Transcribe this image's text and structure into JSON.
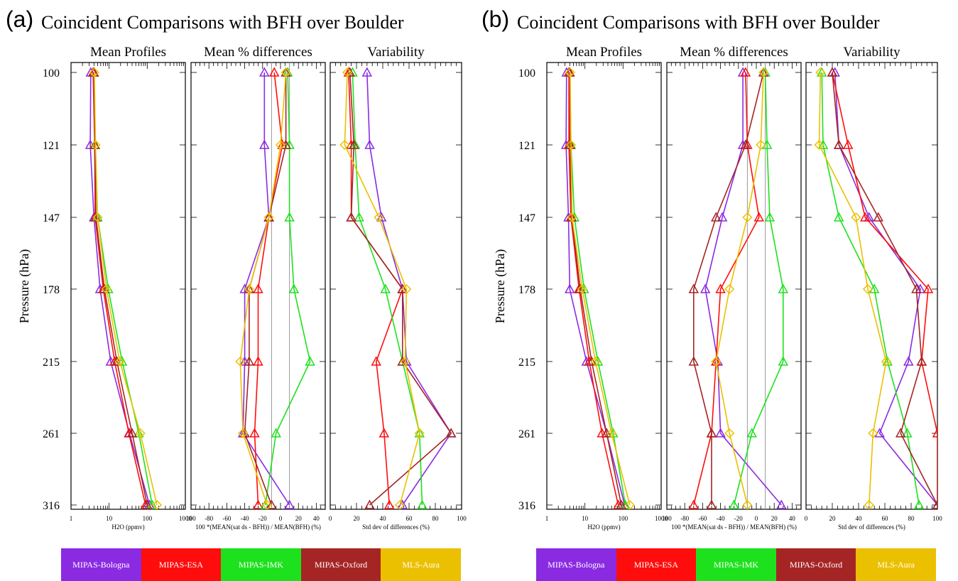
{
  "colors": {
    "MIPAS-Bologna": "#8a2be2",
    "MIPAS-ESA": "#ff0d0d",
    "MIPAS-IMK": "#1ee11e",
    "MIPAS-Oxford": "#a52525",
    "MLS-Aura": "#ebc000"
  },
  "legend": [
    "MIPAS-Bologna",
    "MIPAS-ESA",
    "MIPAS-IMK",
    "MIPAS-Oxford",
    "MLS-Aura"
  ],
  "chart_data": [
    {
      "label": "(a)",
      "title": "Coincident Comparisons with BFH over Boulder",
      "ylabel": "Pressure (hPa)",
      "pressure": [
        100,
        121,
        147,
        178,
        215,
        261,
        316
      ],
      "panels": [
        {
          "type": "line",
          "title": "Mean Profiles",
          "xlabel": "H2O (ppmv)",
          "xscale": "log",
          "xlim": [
            1,
            1000
          ],
          "xticks": [
            "1",
            "10",
            "100",
            "1000"
          ],
          "series": [
            {
              "name": "MIPAS-Bologna",
              "values": [
                3.3,
                3.2,
                4.0,
                5.8,
                11,
                34,
                115
              ]
            },
            {
              "name": "MIPAS-ESA",
              "values": [
                3.8,
                4.2,
                4.3,
                7.0,
                14,
                33,
                90
              ]
            },
            {
              "name": "MIPAS-IMK",
              "values": [
                4.0,
                4.3,
                5.0,
                9.5,
                22,
                60,
                135
              ]
            },
            {
              "name": "MIPAS-Oxford",
              "values": [
                4.0,
                4.2,
                4.5,
                7.5,
                16,
                40,
                100
              ]
            },
            {
              "name": "MLS-Aura",
              "values": [
                4.1,
                4.4,
                5.0,
                8.5,
                19,
                66,
                180
              ]
            }
          ]
        },
        {
          "type": "line",
          "title": "Mean % differences",
          "xlabel": "100 *(MEAN(sat ds - BFH)) / MEAN(BFH) (%)",
          "xlim": [
            -100,
            50
          ],
          "xticks": [
            "100",
            "-80",
            "-60",
            "-40",
            "-20",
            "0",
            "20",
            "40"
          ],
          "vlines": [
            -10,
            10
          ],
          "series": [
            {
              "name": "MIPAS-Bologna",
              "values": [
                -18,
                -18,
                -13,
                -40,
                -40,
                -42,
                10
              ]
            },
            {
              "name": "MIPAS-ESA",
              "values": [
                -7,
                2,
                -13,
                -25,
                -25,
                -29,
                -25
              ]
            },
            {
              "name": "MIPAS-IMK",
              "values": [
                8,
                10,
                10,
                15,
                33,
                -5,
                -17
              ]
            },
            {
              "name": "MIPAS-Oxford",
              "values": [
                6,
                6,
                -13,
                -35,
                -35,
                -40,
                -10
              ]
            },
            {
              "name": "MLS-Aura",
              "values": [
                6,
                0,
                -13,
                -35,
                -45,
                -42,
                -15
              ]
            }
          ]
        },
        {
          "type": "line",
          "title": "Variability",
          "xlabel": "Std dev of differences (%)",
          "xlim": [
            0,
            100
          ],
          "xticks": [
            "0",
            "20",
            "40",
            "60",
            "80",
            "100"
          ],
          "series": [
            {
              "name": "MIPAS-Bologna",
              "values": [
                28,
                30,
                39,
                55,
                58,
                92,
                55
              ]
            },
            {
              "name": "MIPAS-ESA",
              "values": [
                14,
                16,
                16,
                55,
                35,
                41,
                45
              ]
            },
            {
              "name": "MIPAS-IMK",
              "values": [
                17,
                19,
                22,
                42,
                55,
                68,
                70
              ]
            },
            {
              "name": "MIPAS-Oxford",
              "values": [
                15,
                18,
                16,
                55,
                55,
                92,
                30
              ]
            },
            {
              "name": "MLS-Aura",
              "values": [
                13,
                11,
                37,
                58,
                57,
                68,
                53
              ]
            }
          ]
        }
      ]
    },
    {
      "label": "(b)",
      "title": "Coincident Comparisons with BFH over Boulder",
      "ylabel": "Pressure (hPa)",
      "pressure": [
        100,
        121,
        147,
        178,
        215,
        261,
        316
      ],
      "panels": [
        {
          "type": "line",
          "title": "Mean Profiles",
          "xlabel": "H2O (ppmv)",
          "xscale": "log",
          "xlim": [
            1,
            1000
          ],
          "xticks": [
            "1",
            "10",
            "100",
            "1000"
          ],
          "series": [
            {
              "name": "MIPAS-Bologna",
              "values": [
                3.3,
                3.2,
                3.7,
                4.0,
                11,
                37,
                110
              ]
            },
            {
              "name": "MIPAS-ESA",
              "values": [
                3.8,
                3.8,
                4.3,
                7.0,
                13,
                28,
                75
              ]
            },
            {
              "name": "MIPAS-IMK",
              "values": [
                4.0,
                4.3,
                5.3,
                9.5,
                22,
                55,
                115
              ]
            },
            {
              "name": "MIPAS-Oxford",
              "values": [
                4.0,
                4.1,
                4.5,
                7.5,
                15,
                37,
                90
              ]
            },
            {
              "name": "MLS-Aura",
              "values": [
                4.1,
                4.3,
                4.6,
                8.5,
                19,
                50,
                150
              ]
            }
          ]
        },
        {
          "type": "line",
          "title": "Mean % differences",
          "xlabel": "100 *(MEAN(sat ds - BFH)) / MEAN(BFH) (%)",
          "xlim": [
            -100,
            50
          ],
          "xticks": [
            "100",
            "-80",
            "-60",
            "-40",
            "-20",
            "0",
            "20",
            "40"
          ],
          "vlines": [
            -10,
            10
          ],
          "series": [
            {
              "name": "MIPAS-Bologna",
              "values": [
                -15,
                -15,
                -38,
                -57,
                -43,
                -40,
                28
              ]
            },
            {
              "name": "MIPAS-ESA",
              "values": [
                -12,
                -10,
                3,
                -40,
                -45,
                -50,
                -70
              ]
            },
            {
              "name": "MIPAS-IMK",
              "values": [
                10,
                12,
                15,
                30,
                30,
                -5,
                -25
              ]
            },
            {
              "name": "MIPAS-Oxford",
              "values": [
                8,
                -12,
                -45,
                -70,
                -70,
                -50,
                -50
              ]
            },
            {
              "name": "MLS-Aura",
              "values": [
                8,
                5,
                -10,
                -30,
                -45,
                -30,
                -10
              ]
            }
          ]
        },
        {
          "type": "line",
          "title": "Variability",
          "xlabel": "Std dev of differences (%)",
          "xlim": [
            0,
            100
          ],
          "xticks": [
            "0",
            "20",
            "40",
            "60",
            "80",
            "100"
          ],
          "series": [
            {
              "name": "MIPAS-Bologna",
              "values": [
                22,
                25,
                48,
                87,
                78,
                56,
                100
              ]
            },
            {
              "name": "MIPAS-ESA",
              "values": [
                20,
                32,
                45,
                93,
                88,
                100,
                100
              ]
            },
            {
              "name": "MIPAS-IMK",
              "values": [
                12,
                13,
                25,
                52,
                62,
                77,
                86
              ]
            },
            {
              "name": "MIPAS-Oxford",
              "values": [
                20,
                25,
                55,
                84,
                88,
                72,
                100
              ]
            },
            {
              "name": "MLS-Aura",
              "values": [
                11,
                10,
                38,
                47,
                61,
                51,
                48
              ]
            }
          ]
        }
      ]
    }
  ]
}
